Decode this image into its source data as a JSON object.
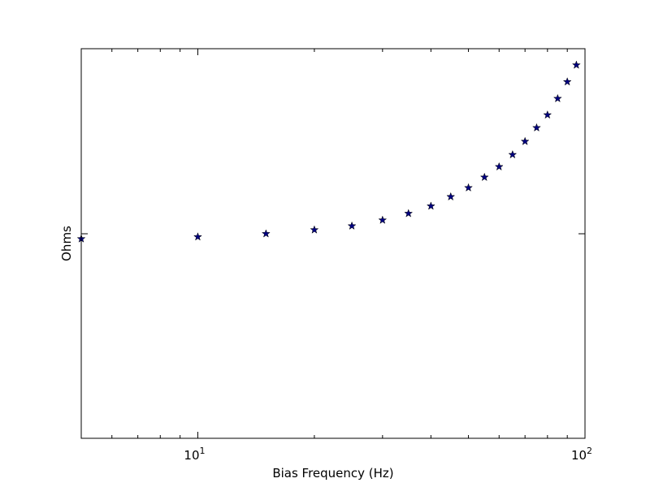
{
  "chart_data": {
    "type": "scatter",
    "title": "",
    "xlabel": "Bias Frequency (Hz)",
    "ylabel": "Ohms",
    "x_scale": "log",
    "y_scale": "linear",
    "xlim": [
      5,
      100
    ],
    "ylim": [
      0,
      1
    ],
    "x_ticks": [
      {
        "value": 10,
        "base": "10",
        "exp": "1"
      },
      {
        "value": 100,
        "base": "10",
        "exp": "2"
      }
    ],
    "x_minor_ticks": [
      6,
      7,
      8,
      9,
      20,
      30,
      40,
      50,
      60,
      70,
      80,
      90
    ],
    "y_ticks": [
      0.525
    ],
    "grid": false,
    "marker": "star",
    "series": [
      {
        "color": "#000080",
        "x": [
          5,
          10,
          15,
          20,
          25,
          30,
          35,
          40,
          45,
          50,
          55,
          60,
          65,
          70,
          75,
          80,
          85,
          90,
          95
        ],
        "y": [
          0.512,
          0.517,
          0.525,
          0.535,
          0.545,
          0.56,
          0.577,
          0.596,
          0.62,
          0.643,
          0.67,
          0.697,
          0.728,
          0.762,
          0.797,
          0.83,
          0.872,
          0.915,
          0.958
        ]
      }
    ]
  }
}
